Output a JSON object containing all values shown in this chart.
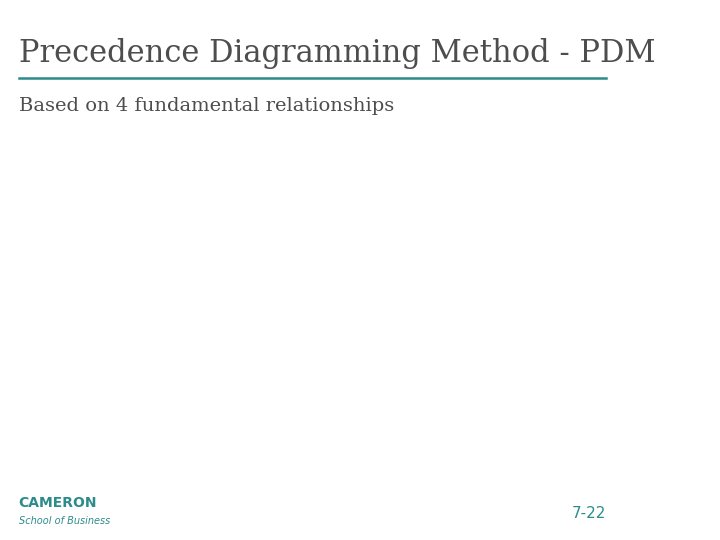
{
  "title": "Precedence Diagramming Method - PDM",
  "subtitle": "Based on 4 fundamental relationships",
  "title_color": "#4d4d4d",
  "subtitle_color": "#4d4d4d",
  "line_color": "#2e8b8b",
  "footer_left_line1": "CAMERON",
  "footer_left_line2": "School of Business",
  "footer_right": "7-22",
  "footer_color": "#2e8b8b",
  "background_color": "#ffffff",
  "title_fontsize": 22,
  "subtitle_fontsize": 14,
  "footer_fontsize_large": 10,
  "footer_fontsize_small": 7,
  "footer_number_fontsize": 11
}
